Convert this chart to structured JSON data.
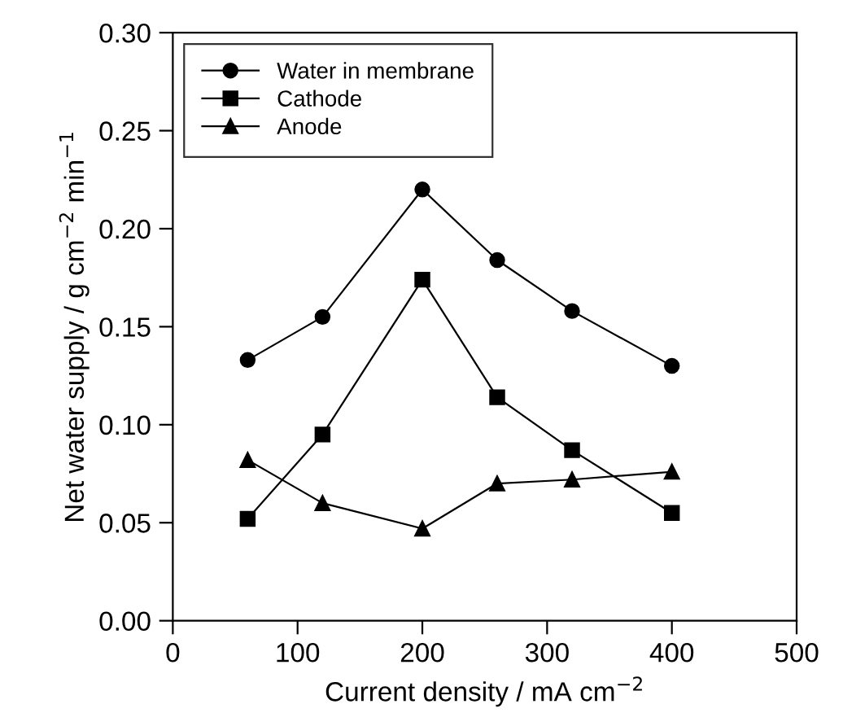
{
  "chart_data": {
    "type": "line",
    "xlabel": "Current density / mA cm$^{−2}$",
    "ylabel": "Net water supply / g cm$^{−2}$ min$^{−1}$",
    "x": [
      60,
      120,
      200,
      260,
      320,
      400
    ],
    "series": [
      {
        "name": "Water in membrane",
        "color": "#000000",
        "marker": "circle",
        "values": [
          0.133,
          0.155,
          0.22,
          0.184,
          0.158,
          0.13
        ]
      },
      {
        "name": "Cathode",
        "color": "#000000",
        "marker": "square",
        "values": [
          0.052,
          0.095,
          0.174,
          0.114,
          0.087,
          0.055
        ]
      },
      {
        "name": "Anode",
        "color": "#000000",
        "marker": "triangle",
        "values": [
          0.082,
          0.06,
          0.047,
          0.07,
          0.072,
          0.076
        ]
      }
    ],
    "xlim": [
      0,
      500
    ],
    "xticks": [
      0,
      100,
      200,
      300,
      400,
      500
    ],
    "ylim": [
      0,
      0.3
    ],
    "yticks": [
      {
        "value": 0,
        "label": "0.00"
      },
      {
        "value": 0.05,
        "label": "0.05"
      },
      {
        "value": 0.1,
        "label": "0.10"
      },
      {
        "value": 0.15,
        "label": "0.15"
      },
      {
        "value": 0.2,
        "label": "0.20"
      },
      {
        "value": 0.25,
        "label": "0.25"
      },
      {
        "value": 0.3,
        "label": "0.30"
      }
    ],
    "grid": false,
    "legend": "top left",
    "line_style": "solid"
  }
}
